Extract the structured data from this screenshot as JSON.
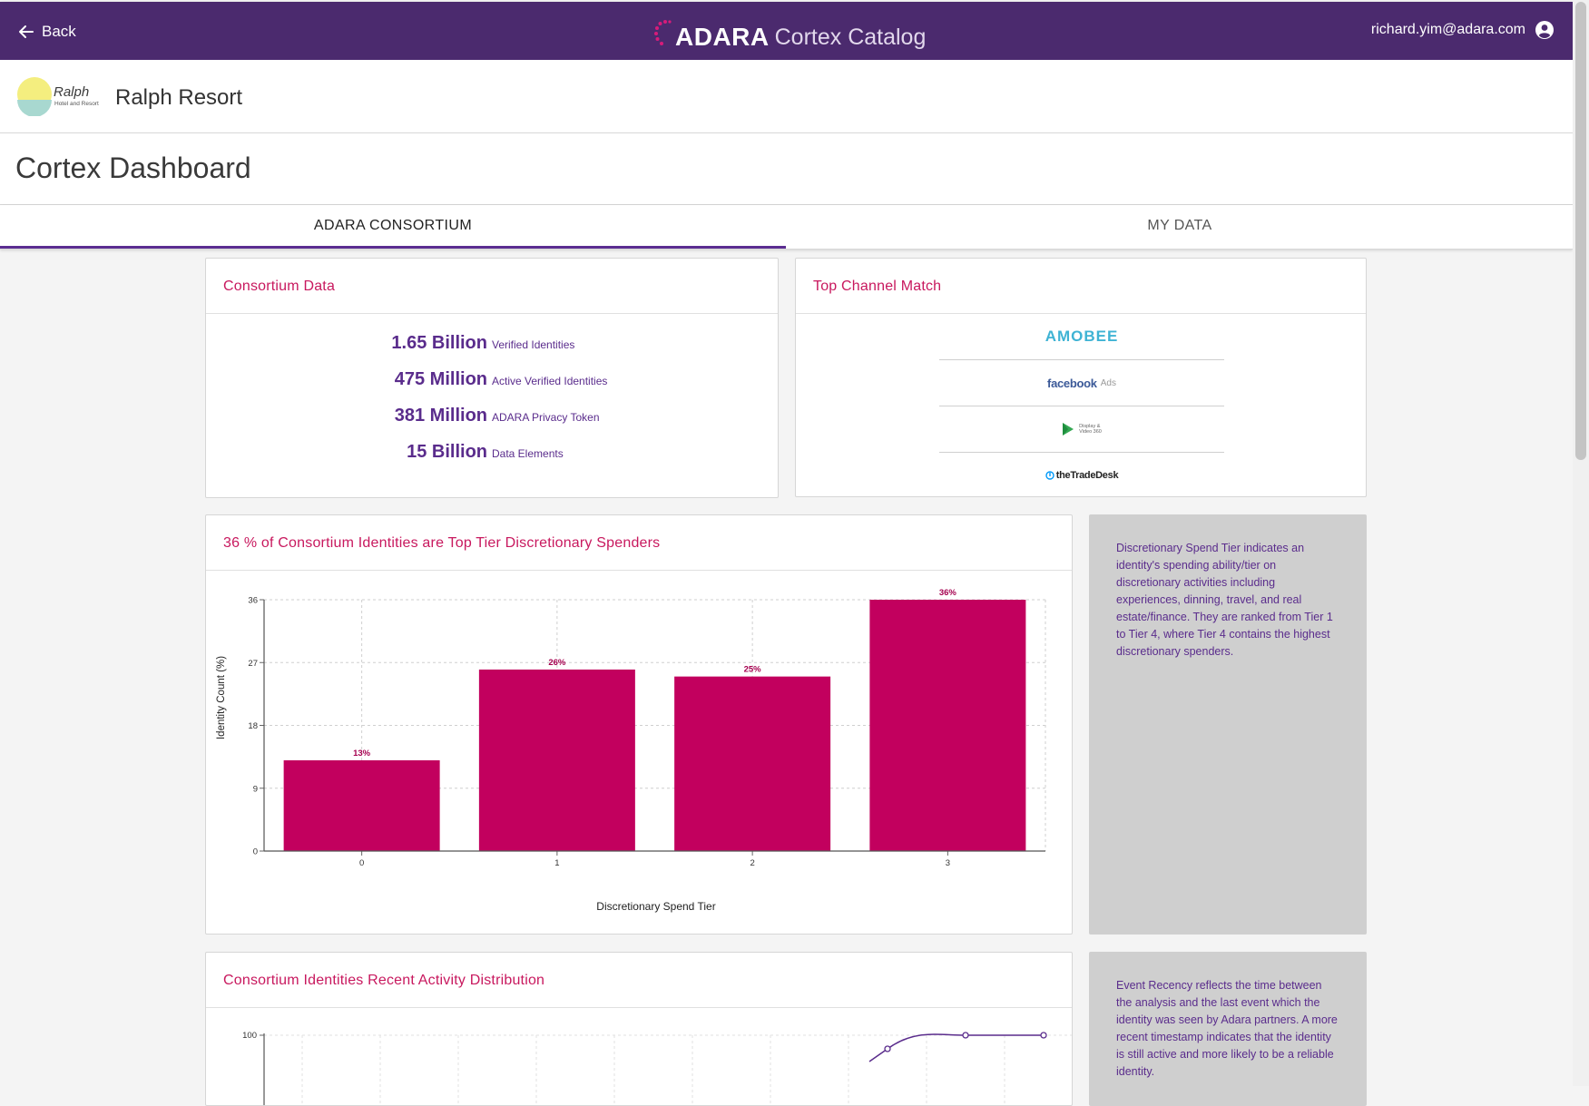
{
  "header": {
    "back_label": "Back",
    "brand_name": "ADARA",
    "brand_sub": "Cortex Catalog",
    "user_email": "richard.yim@adara.com"
  },
  "org": {
    "name": "Ralph Resort",
    "logo_text_1": "Ralph",
    "logo_text_2": "Hotel and Resort"
  },
  "page_title": "Cortex Dashboard",
  "tabs": [
    {
      "label": "ADARA CONSORTIUM",
      "active": true
    },
    {
      "label": "MY DATA",
      "active": false
    }
  ],
  "consortium": {
    "title": "Consortium Data",
    "stats": [
      {
        "value": "1.65 Billion",
        "label": "Verified Identities"
      },
      {
        "value": "475 Million",
        "label": "Active Verified Identities"
      },
      {
        "value": "381 Million",
        "label": "ADARA Privacy Token"
      },
      {
        "value": "15 Billion",
        "label": "Data Elements"
      }
    ]
  },
  "channels": {
    "title": "Top Channel Match",
    "items": [
      {
        "name": "AMOBEE"
      },
      {
        "name": "facebook",
        "suffix": "Ads"
      },
      {
        "name": "Display &",
        "name2": "Video 360"
      },
      {
        "name": "theTradeDesk"
      }
    ]
  },
  "spend": {
    "title": "36 % of Consortium Identities are Top Tier Discretionary Spenders",
    "info": "Discretionary Spend Tier indicates an identity's spending ability/tier on discretionary activities including experiences, dinning, travel, and real estate/finance. They are ranked from Tier 1 to Tier 4, where Tier 4 contains the highest discretionary spenders."
  },
  "recency": {
    "title": "Consortium Identities Recent Activity Distribution",
    "info": "Event Recency reflects the time between the analysis and the last event which the identity was seen by Adara partners. A more recent timestamp indicates that the identity is still active and more likely to be a reliable identity."
  },
  "chart_data": [
    {
      "type": "bar",
      "title": "36 % of Consortium Identities are Top Tier Discretionary Spenders",
      "categories": [
        "0",
        "1",
        "2",
        "3"
      ],
      "values": [
        13,
        26,
        25,
        36
      ],
      "labels": [
        "13%",
        "26%",
        "25%",
        "36%"
      ],
      "xlabel": "Discretionary Spend Tier",
      "ylabel": "Identity Count (%)",
      "yticks": [
        "0",
        "9",
        "18",
        "27",
        "36"
      ],
      "ylim": [
        0,
        36
      ],
      "grid": true,
      "color": "#c2005e"
    },
    {
      "type": "line",
      "title": "Consortium Identities Recent Activity Distribution",
      "y_visible_tick": "100",
      "ylim": [
        0,
        100
      ],
      "x_index": [
        0,
        1,
        2,
        3,
        4,
        5,
        6,
        7,
        8,
        9
      ],
      "points_visible": [
        {
          "x": 7.5,
          "y": 80
        },
        {
          "x": 8.5,
          "y": 100
        },
        {
          "x": 9.5,
          "y": 100
        }
      ],
      "grid": true,
      "color": "#5a2c8c"
    }
  ]
}
